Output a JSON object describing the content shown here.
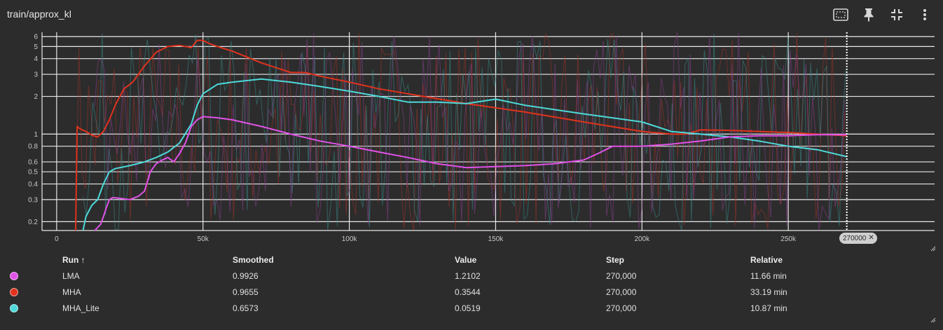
{
  "header": {
    "title": "train/approx_kl",
    "tools": [
      {
        "name": "fit-domain-icon"
      },
      {
        "name": "pin-icon"
      },
      {
        "name": "collapse-icon"
      },
      {
        "name": "more-vert-icon"
      }
    ]
  },
  "chart_data": {
    "type": "line",
    "title": "train/approx_kl",
    "xlabel": "",
    "ylabel": "",
    "yscale": "log",
    "xlim": [
      -5000,
      300000
    ],
    "ylim": [
      0.17,
      6.5
    ],
    "grid": true,
    "x_ticks": [
      0,
      50000,
      100000,
      150000,
      200000,
      250000
    ],
    "x_tick_labels": [
      "0",
      "50k",
      "100k",
      "150k",
      "200k",
      "250k"
    ],
    "y_ticks": [
      0.2,
      0.3,
      0.4,
      0.5,
      0.6,
      0.8,
      1,
      2,
      3,
      4,
      5,
      6
    ],
    "y_tick_labels": [
      "0.2",
      "0.3",
      "0.4",
      "0.5",
      "0.6",
      "0.8",
      "1",
      "2",
      "3",
      "4",
      "5",
      "6"
    ],
    "cursor_step": 270000,
    "cursor_label": "270000",
    "series": [
      {
        "name": "MHA",
        "color": "#e0321d",
        "x": [
          6500,
          7000,
          8000,
          10000,
          12000,
          14000,
          16000,
          18000,
          20000,
          23000,
          26000,
          30000,
          34000,
          38000,
          42000,
          46000,
          48000,
          50000,
          52000,
          55000,
          60000,
          70000,
          80000,
          85000,
          90000,
          100000,
          110000,
          120000,
          140000,
          160000,
          180000,
          200000,
          210000,
          215000,
          220000,
          230000,
          250000,
          270000
        ],
        "y": [
          0.17,
          1.15,
          1.1,
          1.05,
          0.98,
          0.95,
          1.05,
          1.3,
          1.7,
          2.3,
          2.6,
          3.5,
          4.5,
          5.0,
          5.1,
          4.9,
          5.6,
          5.6,
          5.3,
          5.0,
          4.6,
          3.7,
          3.1,
          3.1,
          2.9,
          2.6,
          2.3,
          2.1,
          1.75,
          1.5,
          1.25,
          1.05,
          1.0,
          1.0,
          1.08,
          1.07,
          1.03,
          0.97
        ]
      },
      {
        "name": "MHA_Lite",
        "color": "#4dd9d9",
        "x": [
          9000,
          10000,
          12000,
          14000,
          16000,
          18000,
          20000,
          25000,
          30000,
          34000,
          38000,
          42000,
          46000,
          48000,
          50000,
          55000,
          60000,
          70000,
          80000,
          90000,
          100000,
          110000,
          120000,
          130000,
          140000,
          150000,
          160000,
          180000,
          200000,
          210000,
          220000,
          230000,
          240000,
          250000,
          260000,
          270000
        ],
        "y": [
          0.17,
          0.22,
          0.27,
          0.3,
          0.4,
          0.5,
          0.53,
          0.56,
          0.6,
          0.65,
          0.72,
          0.85,
          1.2,
          1.7,
          2.1,
          2.5,
          2.6,
          2.75,
          2.6,
          2.4,
          2.2,
          2.0,
          1.8,
          1.8,
          1.75,
          1.9,
          1.7,
          1.45,
          1.25,
          1.05,
          1.0,
          0.95,
          0.88,
          0.8,
          0.75,
          0.66
        ]
      },
      {
        "name": "LMA",
        "color": "#e052e8",
        "x": [
          13000,
          14000,
          15000,
          16000,
          17000,
          18000,
          19000,
          20000,
          25000,
          28000,
          30000,
          32000,
          34000,
          36000,
          38000,
          40000,
          42000,
          44000,
          46000,
          48000,
          50000,
          55000,
          60000,
          70000,
          80000,
          90000,
          100000,
          110000,
          120000,
          130000,
          140000,
          150000,
          160000,
          170000,
          180000,
          185000,
          190000,
          200000,
          210000,
          220000,
          230000,
          240000,
          250000,
          260000,
          270000
        ],
        "y": [
          0.17,
          0.18,
          0.19,
          0.22,
          0.26,
          0.3,
          0.31,
          0.31,
          0.3,
          0.32,
          0.35,
          0.5,
          0.58,
          0.62,
          0.65,
          0.6,
          0.7,
          0.85,
          1.15,
          1.3,
          1.38,
          1.35,
          1.3,
          1.15,
          1.0,
          0.88,
          0.8,
          0.72,
          0.65,
          0.58,
          0.54,
          0.55,
          0.56,
          0.58,
          0.62,
          0.7,
          0.8,
          0.8,
          0.83,
          0.88,
          0.95,
          0.97,
          0.97,
          0.99,
          0.99
        ]
      }
    ]
  },
  "table": {
    "headers": {
      "run": "Run ↑",
      "smoothed": "Smoothed",
      "value": "Value",
      "step": "Step",
      "relative": "Relative"
    },
    "rows": [
      {
        "run": "LMA",
        "color": "#e052e8",
        "smoothed": "0.9926",
        "value": "1.2102",
        "step": "270,000",
        "relative": "11.66 min"
      },
      {
        "run": "MHA",
        "color": "#e0321d",
        "smoothed": "0.9655",
        "value": "0.3544",
        "step": "270,000",
        "relative": "33.19 min"
      },
      {
        "run": "MHA_Lite",
        "color": "#4dd9d9",
        "smoothed": "0.6573",
        "value": "0.0519",
        "step": "270,000",
        "relative": "10.87 min"
      }
    ]
  }
}
